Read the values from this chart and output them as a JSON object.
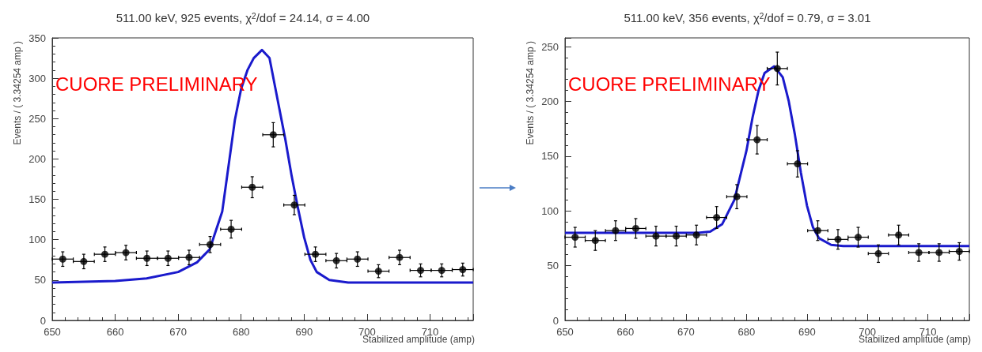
{
  "chart_data": [
    {
      "type": "scatter",
      "title": "511.00 keV, 925 events, χ$^{2}$/dof = 24.14, σ = 4.00",
      "xlabel": "Stabilized amplitude (amp)",
      "ylabel": "Events / ( 3.34254 amp )",
      "annotations": [
        "CUORE PRELIMINARY"
      ],
      "xlim": [
        650,
        716.85
      ],
      "xticks": [
        650,
        660,
        670,
        680,
        690,
        700,
        710
      ],
      "ylim": [
        0,
        350
      ],
      "yticks": [
        0,
        50,
        100,
        150,
        200,
        250,
        300,
        350
      ],
      "grid": false,
      "x": [
        651.67,
        655.01,
        658.36,
        661.7,
        665.04,
        668.39,
        671.73,
        675.07,
        678.41,
        681.76,
        685.1,
        688.44,
        691.79,
        695.13,
        698.47,
        701.81,
        705.16,
        708.5,
        711.85,
        715.19
      ],
      "series": [
        {
          "color": "#000000",
          "marker": "circle",
          "values": [
            76,
            73,
            82,
            84,
            77,
            77,
            78,
            94,
            113,
            165,
            230,
            143,
            82,
            74,
            76,
            61,
            78,
            62,
            62,
            63
          ],
          "errors": [
            9,
            9,
            9,
            9,
            9,
            9,
            9,
            10,
            11,
            13,
            15,
            12,
            9,
            9,
            9,
            8,
            9,
            8,
            8,
            8
          ],
          "xerrors": [
            1.67,
            1.67,
            1.67,
            1.67,
            1.67,
            1.67,
            1.67,
            1.67,
            1.67,
            1.67,
            1.67,
            1.67,
            1.67,
            1.67,
            1.67,
            1.67,
            1.67,
            1.67,
            1.67,
            1.67
          ]
        },
        {
          "type": "line",
          "color": "#1a1acc",
          "marker": "none",
          "x": [
            650,
            660,
            665,
            670,
            673,
            675,
            677,
            679,
            680,
            681,
            682,
            683.3,
            684.5,
            686,
            687,
            688,
            689,
            690,
            691,
            692,
            694,
            697,
            716.85
          ],
          "values": [
            47,
            49,
            52,
            60,
            72,
            88,
            135,
            248,
            287,
            310,
            325,
            335,
            325,
            265,
            225,
            180,
            140,
            103,
            75,
            60,
            50,
            47,
            47
          ]
        }
      ]
    },
    {
      "type": "scatter",
      "title": "511.00 keV, 356 events, χ$^{2}$/dof = 0.79, σ = 3.01",
      "xlabel": "Stabilized amplitude (amp)",
      "ylabel": "Events / ( 3.34254 amp )",
      "annotations": [
        "CUORE PRELIMINARY"
      ],
      "xlim": [
        650,
        716.85
      ],
      "xticks": [
        650,
        660,
        670,
        680,
        690,
        700,
        710
      ],
      "ylim": [
        0,
        258
      ],
      "yticks": [
        0,
        50,
        100,
        150,
        200,
        250
      ],
      "grid": false,
      "x": [
        651.67,
        655.01,
        658.36,
        661.7,
        665.04,
        668.39,
        671.73,
        675.07,
        678.41,
        681.76,
        685.1,
        688.44,
        691.79,
        695.13,
        698.47,
        701.81,
        705.16,
        708.5,
        711.85,
        715.19
      ],
      "series": [
        {
          "color": "#000000",
          "marker": "circle",
          "values": [
            76,
            73,
            82,
            84,
            77,
            77,
            78,
            94,
            113,
            165,
            230,
            143,
            82,
            74,
            76,
            61,
            78,
            62,
            62,
            63
          ],
          "errors": [
            9,
            9,
            9,
            9,
            9,
            9,
            9,
            10,
            11,
            13,
            15,
            12,
            9,
            9,
            9,
            8,
            9,
            8,
            8,
            8
          ],
          "xerrors": [
            1.67,
            1.67,
            1.67,
            1.67,
            1.67,
            1.67,
            1.67,
            1.67,
            1.67,
            1.67,
            1.67,
            1.67,
            1.67,
            1.67,
            1.67,
            1.67,
            1.67,
            1.67,
            1.67,
            1.67
          ]
        },
        {
          "type": "line",
          "color": "#1a1acc",
          "marker": "none",
          "x": [
            650,
            672,
            674,
            676,
            678,
            680,
            681,
            682,
            683,
            684.6,
            686,
            687,
            688,
            689,
            690,
            691,
            692,
            694,
            696,
            716.85
          ],
          "values": [
            80,
            80,
            81,
            88,
            110,
            155,
            185,
            210,
            226,
            232,
            222,
            200,
            170,
            135,
            105,
            85,
            75,
            69,
            68,
            68
          ]
        }
      ]
    }
  ]
}
